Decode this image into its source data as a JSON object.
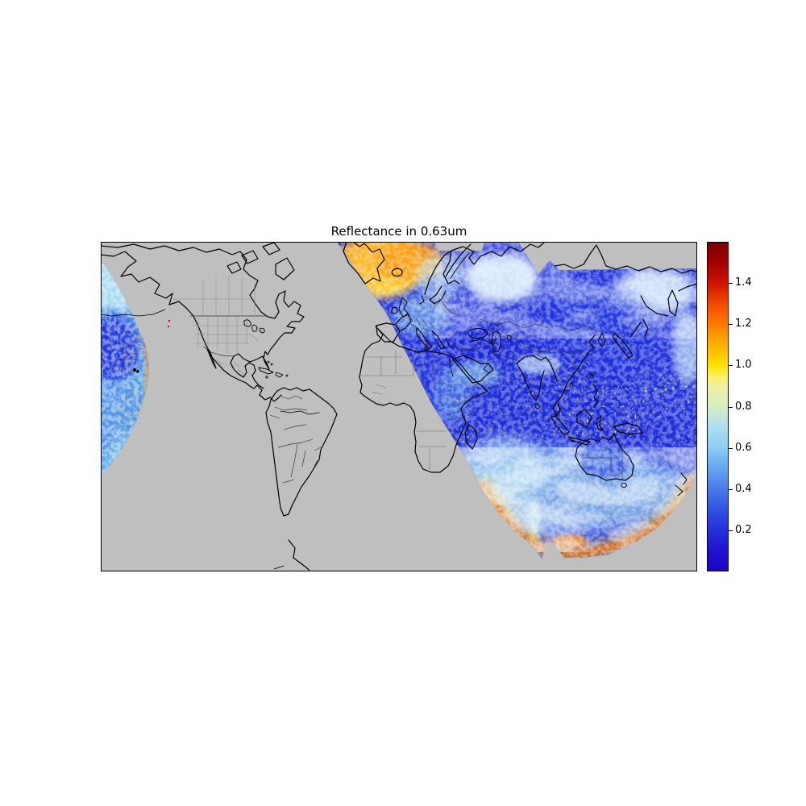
{
  "figure": {
    "title": "Reflectance in 0.63um",
    "background_color": "#ffffff"
  },
  "axes": {
    "no_data_color": "#bfbfbf",
    "coastline_color": "#000000",
    "country_border_color": "#333333",
    "state_border_color": "#8a8a8a",
    "frame_color": "#000000"
  },
  "colorbar": {
    "side": "right",
    "orientation": "vertical",
    "vmin": 0.0,
    "vmax": 1.6,
    "tick_values": [
      0.2,
      0.4,
      0.6,
      0.8,
      1.0,
      1.2,
      1.4
    ],
    "tick_labels": [
      "0.2",
      "0.4",
      "0.6",
      "0.8",
      "1.0",
      "1.2",
      "1.4"
    ],
    "colormap_stops": [
      {
        "value": 0.0,
        "color": "#1e04c8"
      },
      {
        "value": 0.1,
        "color": "#2013d0"
      },
      {
        "value": 0.2,
        "color": "#2531da"
      },
      {
        "value": 0.3,
        "color": "#3152e2"
      },
      {
        "value": 0.4,
        "color": "#4a7cea"
      },
      {
        "value": 0.5,
        "color": "#66a6ee"
      },
      {
        "value": 0.6,
        "color": "#8ecdf4"
      },
      {
        "value": 0.7,
        "color": "#abdef2"
      },
      {
        "value": 0.8,
        "color": "#d6edc2"
      },
      {
        "value": 0.9,
        "color": "#eef0a0"
      },
      {
        "value": 0.95,
        "color": "#fbf060"
      },
      {
        "value": 1.0,
        "color": "#ffe200"
      },
      {
        "value": 1.1,
        "color": "#ffb200"
      },
      {
        "value": 1.2,
        "color": "#ff7c00"
      },
      {
        "value": 1.3,
        "color": "#f34a00"
      },
      {
        "value": 1.4,
        "color": "#cd1500"
      },
      {
        "value": 1.5,
        "color": "#a30000"
      },
      {
        "value": 1.6,
        "color": "#7a0000"
      }
    ]
  },
  "chart_data": {
    "type": "heatmap",
    "title": "Reflectance in 0.63um",
    "value_range": [
      0.0,
      1.6
    ],
    "colorbar_ticks": [
      0.2,
      0.4,
      0.6,
      0.8,
      1.0,
      1.2,
      1.4
    ],
    "legend_position": "right",
    "grid": false,
    "basemap": "world coastlines with country and state borders on gray no-data background",
    "regions": [
      {
        "name": "main-satellite-swath",
        "coverage": "Europe, Asia, Indian Ocean, Maritime Continent, Australia, Southern Ocean",
        "values": "mostly 0.05-0.6 (deep blue ocean with cyan/white cloud); speckled 0.8-1.2 clouds in tropics; 1.0-1.6 orange/red along the southern swath rim"
      },
      {
        "name": "greenland-iceland-patch",
        "coverage": "top-center near Greenland/Iceland",
        "values": "high reflectance 0.9-1.5 (yellow-orange-red)"
      },
      {
        "name": "west-pacific-sliver",
        "coverage": "left map edge, eastern Pacific",
        "values": "0.1-0.8 blue/cyan with 1.0-1.6 speckles along curved rim"
      },
      {
        "name": "no-data",
        "values": "gray #bfbfbf (Americas, Atlantic, most of Africa)"
      }
    ]
  }
}
